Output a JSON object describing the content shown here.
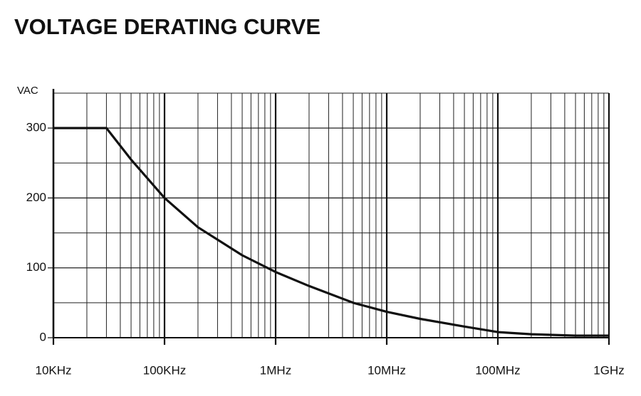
{
  "chart_data": {
    "type": "line",
    "title": "VOLTAGE DERATING CURVE",
    "y_label": "VAC",
    "x_log": true,
    "x": [
      10000,
      30000,
      50000,
      100000,
      200000,
      500000,
      1000000,
      2000000,
      5000000,
      10000000,
      20000000,
      50000000,
      100000000,
      200000000,
      500000000,
      1000000000
    ],
    "series": [
      {
        "name": "VAC",
        "color": "#111111",
        "values": [
          300,
          300,
          255,
          200,
          158,
          118,
          94,
          74,
          50,
          37,
          27,
          16,
          8,
          5,
          3,
          3
        ]
      }
    ],
    "xlim": [
      10000,
      1000000000
    ],
    "xticks": [
      {
        "value": 10000,
        "label": "10KHz"
      },
      {
        "value": 100000,
        "label": "100KHz"
      },
      {
        "value": 1000000,
        "label": "1MHz"
      },
      {
        "value": 10000000,
        "label": "10MHz"
      },
      {
        "value": 100000000,
        "label": "100MHz"
      },
      {
        "value": 1000000000,
        "label": "1GHz"
      }
    ],
    "ylim": [
      0,
      350
    ],
    "yticks": [
      0,
      100,
      200,
      300
    ],
    "y_minor_ticks": [
      50,
      150,
      250,
      350
    ],
    "grid": true
  }
}
